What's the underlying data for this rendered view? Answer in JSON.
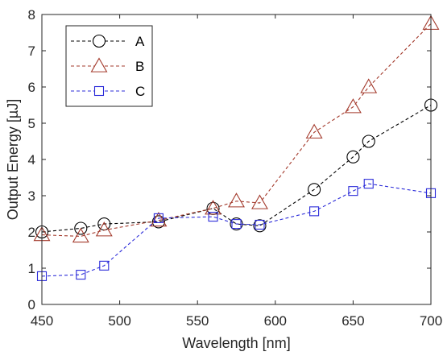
{
  "chart_data": {
    "type": "line",
    "xlabel": "Wavelength [nm]",
    "ylabel": "Output Energy [µJ]",
    "xlim": [
      450,
      700
    ],
    "ylim": [
      0,
      8
    ],
    "xticks": [
      450,
      500,
      550,
      600,
      650,
      700
    ],
    "yticks": [
      0,
      1,
      2,
      3,
      4,
      5,
      6,
      7,
      8
    ],
    "grid": false,
    "legend_position": "top-left",
    "series": [
      {
        "name": "A",
        "color": "#000000",
        "marker": "circle",
        "x": [
          450,
          475,
          490,
          525,
          560,
          575,
          590,
          625,
          650,
          660,
          700
        ],
        "y": [
          2.0,
          2.1,
          2.22,
          2.28,
          2.65,
          2.22,
          2.17,
          3.17,
          4.07,
          4.5,
          5.5
        ]
      },
      {
        "name": "B",
        "color": "#a3392b",
        "marker": "triangle",
        "x": [
          450,
          475,
          490,
          525,
          560,
          575,
          590,
          625,
          650,
          660,
          700
        ],
        "y": [
          1.92,
          1.88,
          2.05,
          2.32,
          2.65,
          2.85,
          2.8,
          4.75,
          5.45,
          6.0,
          7.75
        ]
      },
      {
        "name": "C",
        "color": "#2b2bd9",
        "marker": "square",
        "x": [
          450,
          475,
          490,
          525,
          560,
          575,
          590,
          625,
          650,
          660,
          700
        ],
        "y": [
          0.78,
          0.82,
          1.07,
          2.38,
          2.42,
          2.22,
          2.2,
          2.57,
          3.13,
          3.33,
          3.07
        ]
      }
    ]
  }
}
